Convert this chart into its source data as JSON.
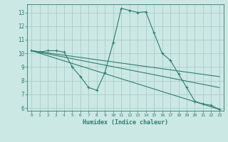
{
  "xlabel": "Humidex (Indice chaleur)",
  "ylabel": "",
  "background_color": "#cce8e4",
  "grid_color": "#aaccca",
  "line_color": "#2e7d6e",
  "xlim": [
    -0.5,
    23.5
  ],
  "ylim": [
    5.8,
    13.6
  ],
  "yticks": [
    6,
    7,
    8,
    9,
    10,
    11,
    12,
    13
  ],
  "xticks": [
    0,
    1,
    2,
    3,
    4,
    5,
    6,
    7,
    8,
    9,
    10,
    11,
    12,
    13,
    14,
    15,
    16,
    17,
    18,
    19,
    20,
    21,
    22,
    23
  ],
  "series": [
    {
      "x": [
        0,
        1,
        2,
        3,
        4,
        5,
        6,
        7,
        8,
        9,
        10,
        11,
        12,
        13,
        14,
        15,
        16,
        17,
        18,
        19,
        20,
        21,
        22,
        23
      ],
      "y": [
        10.2,
        10.1,
        10.2,
        10.2,
        10.1,
        9.0,
        8.3,
        7.5,
        7.3,
        8.6,
        10.8,
        13.3,
        13.15,
        13.0,
        13.05,
        11.5,
        10.0,
        9.5,
        8.5,
        7.5,
        6.5,
        6.3,
        6.2,
        5.9
      ]
    },
    {
      "x": [
        0,
        23
      ],
      "y": [
        10.2,
        5.9
      ]
    },
    {
      "x": [
        0,
        23
      ],
      "y": [
        10.2,
        7.5
      ]
    },
    {
      "x": [
        0,
        23
      ],
      "y": [
        10.2,
        8.3
      ]
    }
  ]
}
